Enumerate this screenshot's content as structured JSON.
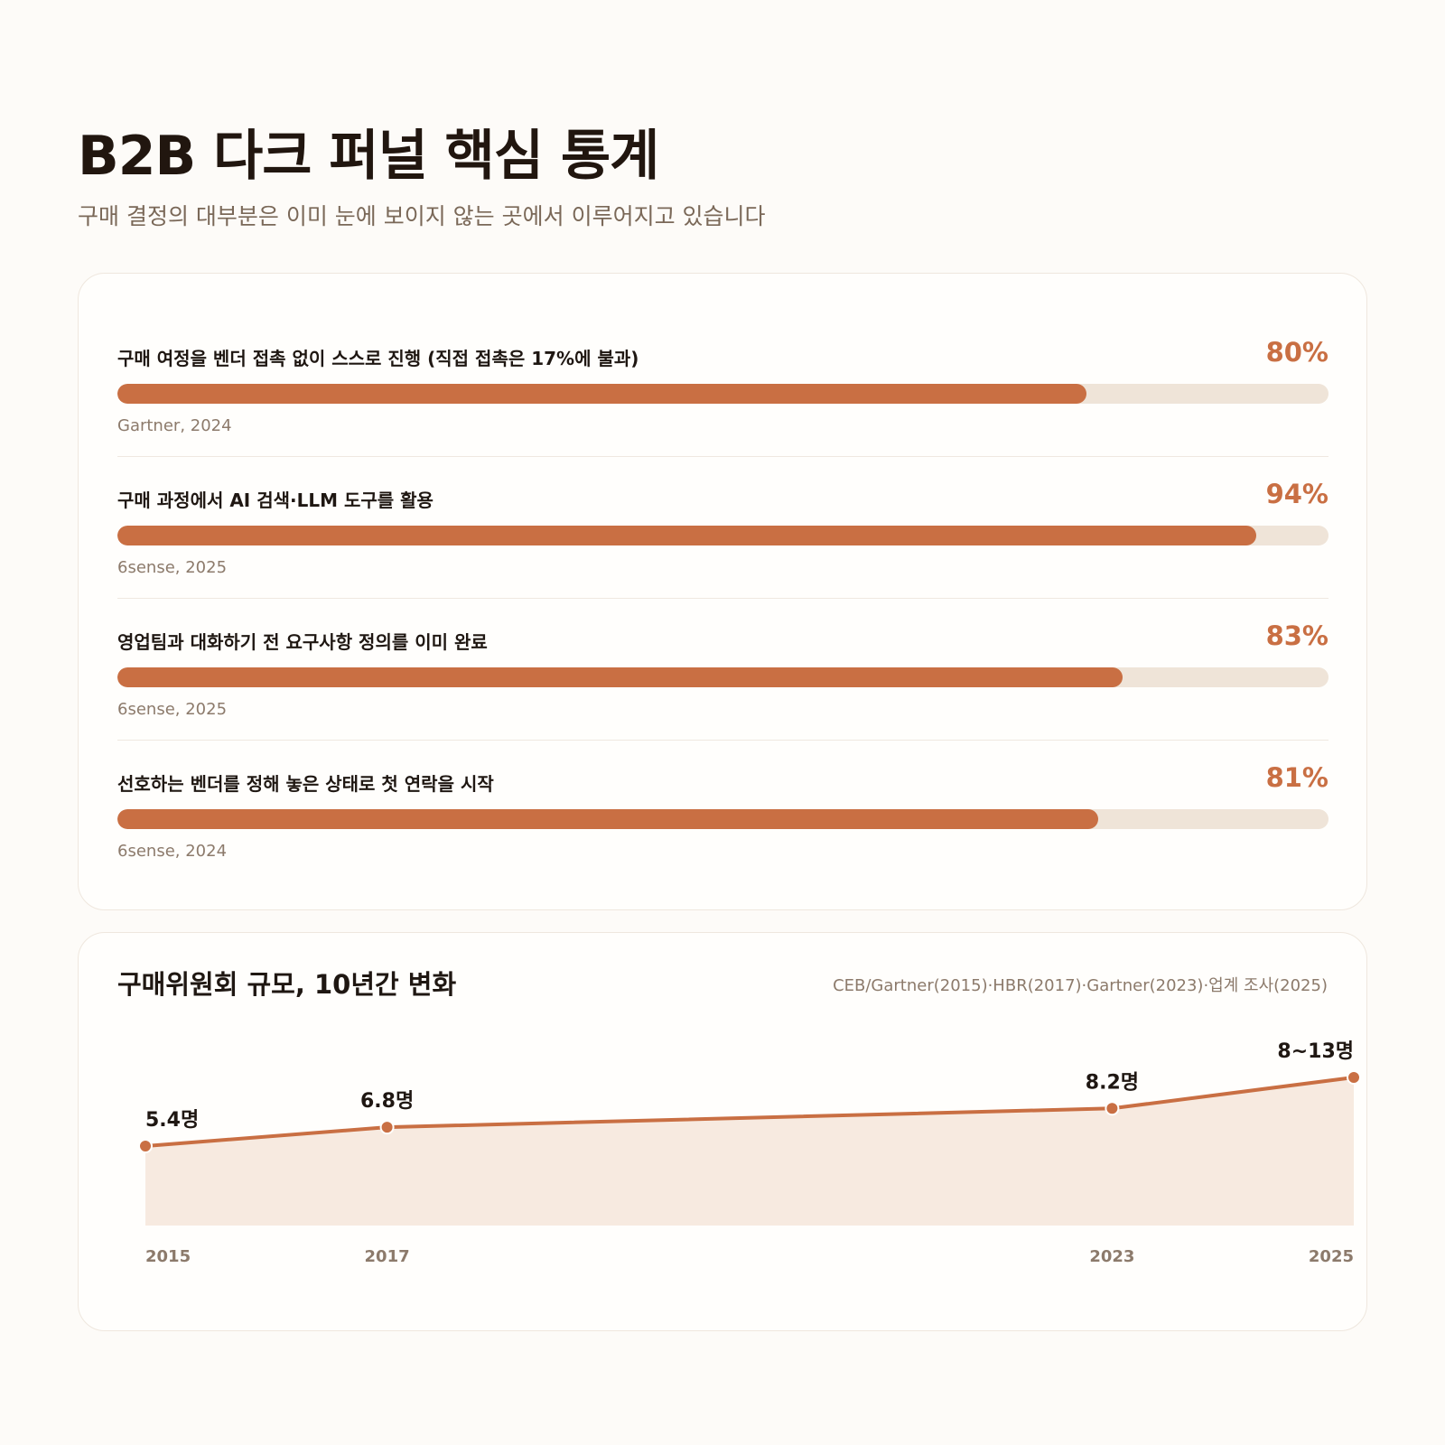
{
  "header": {
    "title": "B2B 다크 퍼널 핵심 통계",
    "subtitle": "구매 결정의 대부분은 이미 눈에 보이지 않는 곳에서 이루어지고 있습니다"
  },
  "colors": {
    "accent": "#c96f43",
    "track": "#efe4d8",
    "area": "#f7eae0",
    "text": "#1f1712",
    "muted": "#8c7a6b",
    "background": "#fdfbf8"
  },
  "stats": [
    {
      "label": "구매 여정을 벤더 접촉 없이 스스로 진행 (직접 접촉은 17%에 불과)",
      "value": 80,
      "value_label": "80%",
      "source": "Gartner, 2024"
    },
    {
      "label": "구매 과정에서 AI 검색·LLM 도구를 활용",
      "value": 94,
      "value_label": "94%",
      "source": "6sense, 2025"
    },
    {
      "label": "영업팀과 대화하기 전 요구사항 정의를 이미 완료",
      "value": 83,
      "value_label": "83%",
      "source": "6sense, 2025"
    },
    {
      "label": "선호하는 벤더를 정해 놓은 상태로 첫 연락을 시작",
      "value": 81,
      "value_label": "81%",
      "source": "6sense, 2024"
    }
  ],
  "trend": {
    "title": "구매위원회 규모, 10년간 변화",
    "source": "CEB/Gartner(2015)·HBR(2017)·Gartner(2023)·업계 조사(2025)"
  },
  "chart_data": [
    {
      "type": "bar",
      "orientation": "horizontal",
      "categories": [
        "구매 여정을 벤더 접촉 없이 스스로 진행 (직접 접촉은 17%에 불과)",
        "구매 과정에서 AI 검색·LLM 도구를 활용",
        "영업팀과 대화하기 전 요구사항 정의를 이미 완료",
        "선호하는 벤더를 정해 놓은 상태로 첫 연락을 시작"
      ],
      "values": [
        80,
        94,
        83,
        81
      ],
      "data_labels": [
        "80%",
        "94%",
        "83%",
        "81%"
      ],
      "ylim": [
        0,
        100
      ]
    },
    {
      "type": "area",
      "title": "구매위원회 규모, 10년간 변화",
      "categories": [
        "2015",
        "2017",
        "2023",
        "2025"
      ],
      "values": [
        5.4,
        6.8,
        8.2,
        10.5
      ],
      "data_labels": [
        "5.4명",
        "6.8명",
        "8.2명",
        "8~13명"
      ],
      "ylim": [
        0,
        12
      ],
      "grid": false
    }
  ]
}
